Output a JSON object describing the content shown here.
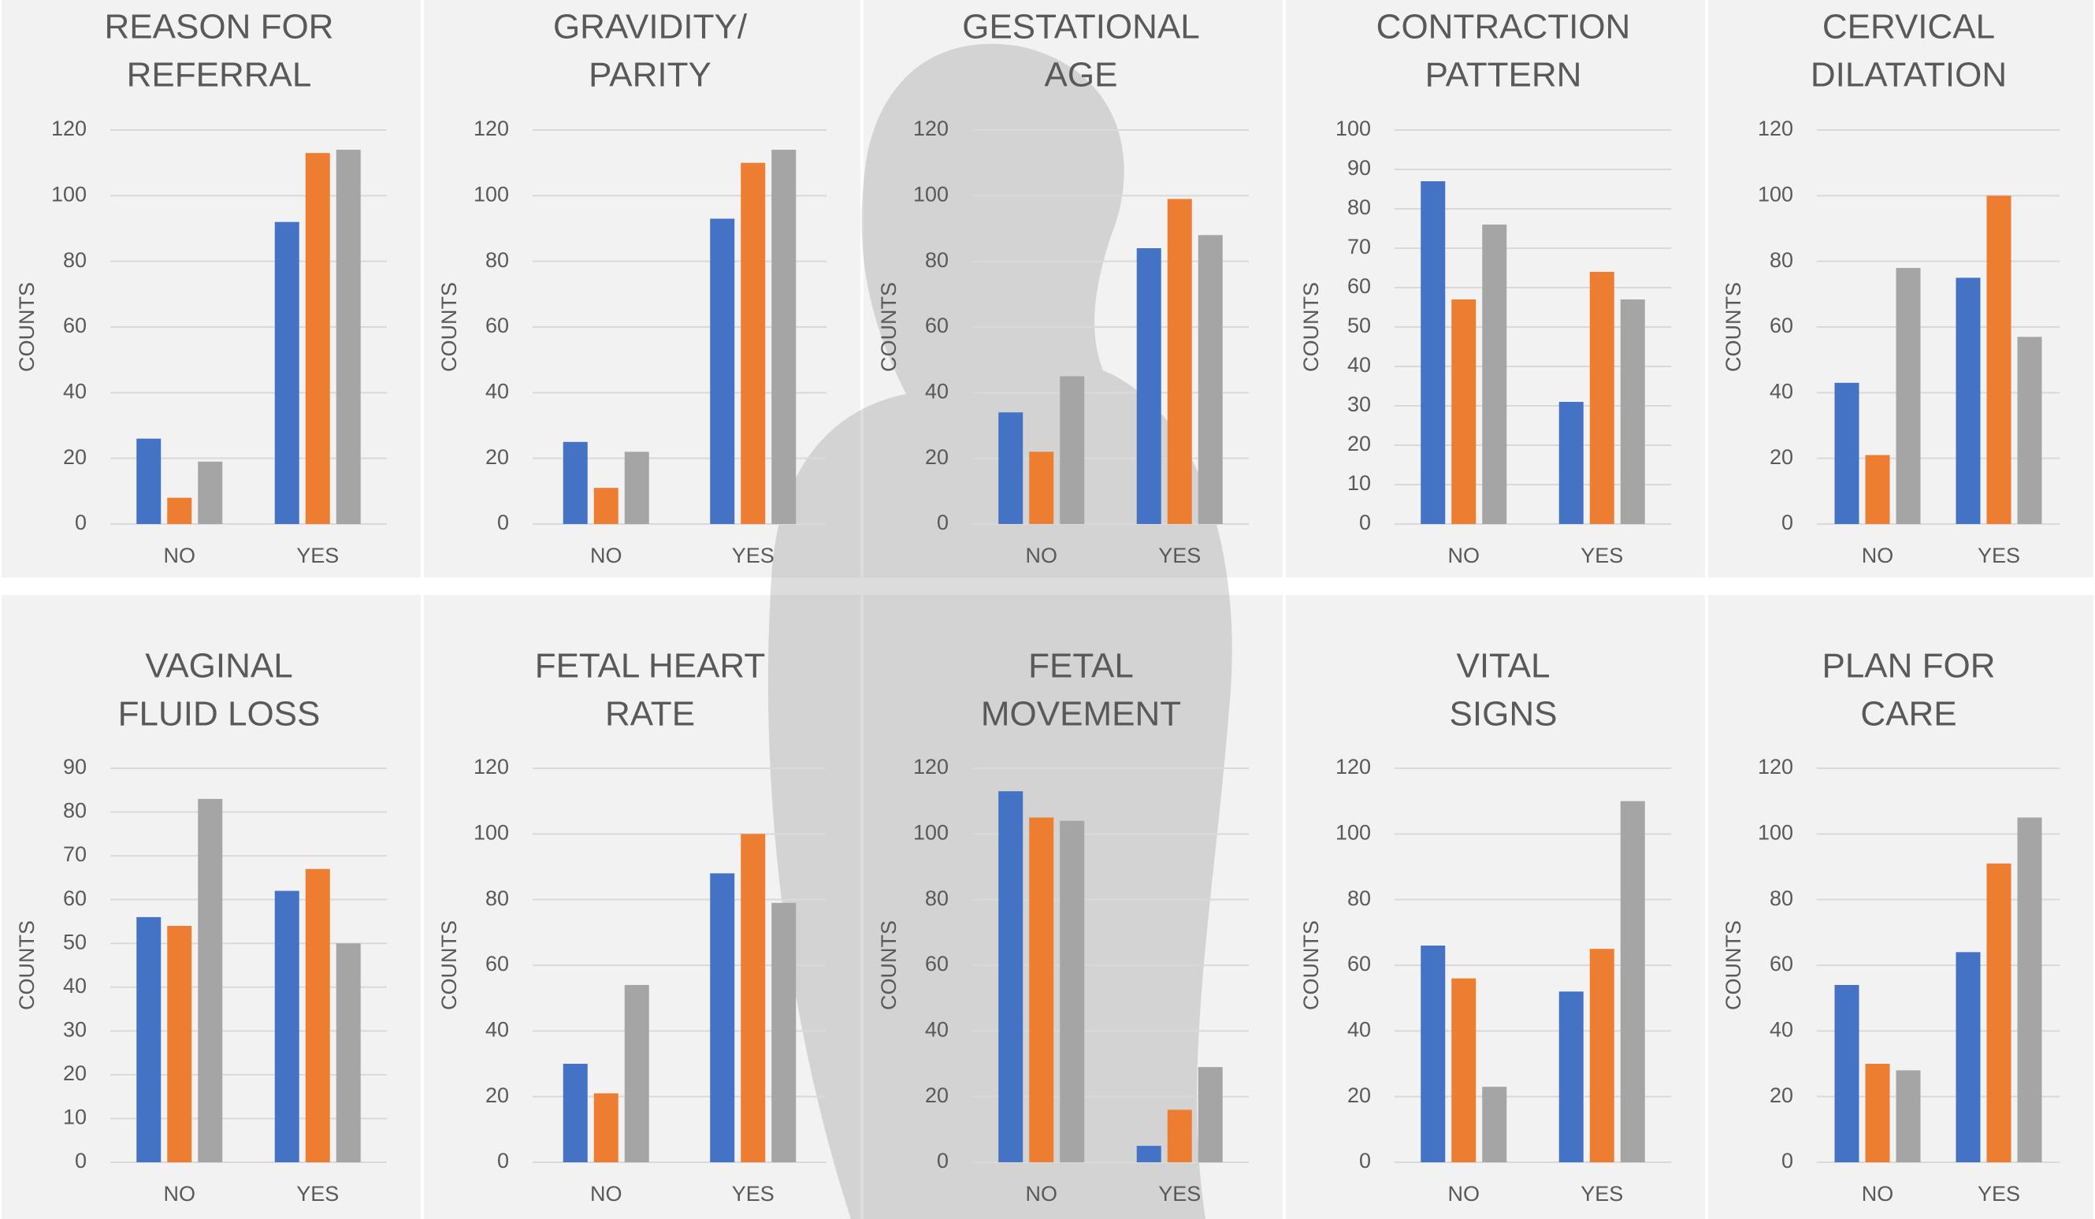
{
  "chart_data": [
    {
      "type": "bar",
      "title": [
        "REASON FOR",
        "REFERRAL"
      ],
      "ylabel": "COUNTS",
      "categories": [
        "NO",
        "YES"
      ],
      "series": [
        {
          "color": "#4472c4",
          "values": [
            26,
            92
          ]
        },
        {
          "color": "#ed7d31",
          "values": [
            8,
            113
          ]
        },
        {
          "color": "#a5a5a5",
          "values": [
            19,
            114
          ]
        }
      ],
      "ylim": [
        0,
        120
      ],
      "yticks": [
        0,
        20,
        40,
        60,
        80,
        100,
        120
      ],
      "grid": true
    },
    {
      "type": "bar",
      "title": [
        "GRAVIDITY/",
        "PARITY"
      ],
      "ylabel": "COUNTS",
      "categories": [
        "NO",
        "YES"
      ],
      "series": [
        {
          "color": "#4472c4",
          "values": [
            25,
            93
          ]
        },
        {
          "color": "#ed7d31",
          "values": [
            11,
            110
          ]
        },
        {
          "color": "#a5a5a5",
          "values": [
            22,
            114
          ]
        }
      ],
      "ylim": [
        0,
        120
      ],
      "yticks": [
        0,
        20,
        40,
        60,
        80,
        100,
        120
      ],
      "grid": true
    },
    {
      "type": "bar",
      "title": [
        "GESTATIONAL",
        "AGE"
      ],
      "ylabel": "COUNTS",
      "categories": [
        "NO",
        "YES"
      ],
      "series": [
        {
          "color": "#4472c4",
          "values": [
            34,
            84
          ]
        },
        {
          "color": "#ed7d31",
          "values": [
            22,
            99
          ]
        },
        {
          "color": "#a5a5a5",
          "values": [
            45,
            88
          ]
        }
      ],
      "ylim": [
        0,
        120
      ],
      "yticks": [
        0,
        20,
        40,
        60,
        80,
        100,
        120
      ],
      "grid": true
    },
    {
      "type": "bar",
      "title": [
        "CONTRACTION",
        "PATTERN"
      ],
      "ylabel": "COUNTS",
      "categories": [
        "NO",
        "YES"
      ],
      "series": [
        {
          "color": "#4472c4",
          "values": [
            87,
            31
          ]
        },
        {
          "color": "#ed7d31",
          "values": [
            57,
            64
          ]
        },
        {
          "color": "#a5a5a5",
          "values": [
            76,
            57
          ]
        }
      ],
      "ylim": [
        0,
        100
      ],
      "yticks": [
        0,
        10,
        20,
        30,
        40,
        50,
        60,
        70,
        80,
        90,
        100
      ],
      "grid": true
    },
    {
      "type": "bar",
      "title": [
        "CERVICAL",
        "DILATATION"
      ],
      "ylabel": "COUNTS",
      "categories": [
        "NO",
        "YES"
      ],
      "series": [
        {
          "color": "#4472c4",
          "values": [
            43,
            75
          ]
        },
        {
          "color": "#ed7d31",
          "values": [
            21,
            100
          ]
        },
        {
          "color": "#a5a5a5",
          "values": [
            78,
            57
          ]
        }
      ],
      "ylim": [
        0,
        120
      ],
      "yticks": [
        0,
        20,
        40,
        60,
        80,
        100,
        120
      ],
      "grid": true
    },
    {
      "type": "bar",
      "title": [
        "VAGINAL",
        "FLUID LOSS"
      ],
      "ylabel": "COUNTS",
      "categories": [
        "NO",
        "YES"
      ],
      "series": [
        {
          "color": "#4472c4",
          "values": [
            56,
            62
          ]
        },
        {
          "color": "#ed7d31",
          "values": [
            54,
            67
          ]
        },
        {
          "color": "#a5a5a5",
          "values": [
            83,
            50
          ]
        }
      ],
      "ylim": [
        0,
        90
      ],
      "yticks": [
        0,
        10,
        20,
        30,
        40,
        50,
        60,
        70,
        80,
        90
      ],
      "grid": true
    },
    {
      "type": "bar",
      "title": [
        "FETAL HEART",
        "RATE"
      ],
      "ylabel": "COUNTS",
      "categories": [
        "NO",
        "YES"
      ],
      "series": [
        {
          "color": "#4472c4",
          "values": [
            30,
            88
          ]
        },
        {
          "color": "#ed7d31",
          "values": [
            21,
            100
          ]
        },
        {
          "color": "#a5a5a5",
          "values": [
            54,
            79
          ]
        }
      ],
      "ylim": [
        0,
        120
      ],
      "yticks": [
        0,
        20,
        40,
        60,
        80,
        100,
        120
      ],
      "grid": true
    },
    {
      "type": "bar",
      "title": [
        "FETAL",
        "MOVEMENT"
      ],
      "ylabel": "COUNTS",
      "categories": [
        "NO",
        "YES"
      ],
      "series": [
        {
          "color": "#4472c4",
          "values": [
            113,
            5
          ]
        },
        {
          "color": "#ed7d31",
          "values": [
            105,
            16
          ]
        },
        {
          "color": "#a5a5a5",
          "values": [
            104,
            29
          ]
        }
      ],
      "ylim": [
        0,
        120
      ],
      "yticks": [
        0,
        20,
        40,
        60,
        80,
        100,
        120
      ],
      "grid": true
    },
    {
      "type": "bar",
      "title": [
        "VITAL",
        "SIGNS"
      ],
      "ylabel": "COUNTS",
      "categories": [
        "NO",
        "YES"
      ],
      "series": [
        {
          "color": "#4472c4",
          "values": [
            66,
            52
          ]
        },
        {
          "color": "#ed7d31",
          "values": [
            56,
            65
          ]
        },
        {
          "color": "#a5a5a5",
          "values": [
            23,
            110
          ]
        }
      ],
      "ylim": [
        0,
        120
      ],
      "yticks": [
        0,
        20,
        40,
        60,
        80,
        100,
        120
      ],
      "grid": true
    },
    {
      "type": "bar",
      "title": [
        "PLAN FOR",
        "CARE"
      ],
      "ylabel": "COUNTS",
      "categories": [
        "NO",
        "YES"
      ],
      "series": [
        {
          "color": "#4472c4",
          "values": [
            54,
            64
          ]
        },
        {
          "color": "#ed7d31",
          "values": [
            30,
            91
          ]
        },
        {
          "color": "#a5a5a5",
          "values": [
            28,
            105
          ]
        }
      ],
      "ylim": [
        0,
        120
      ],
      "yticks": [
        0,
        20,
        40,
        60,
        80,
        100,
        120
      ],
      "grid": true
    }
  ]
}
